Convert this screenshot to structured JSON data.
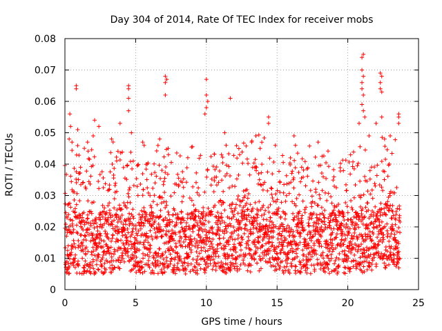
{
  "chart_data": {
    "type": "scatter",
    "title": "Day 304 of 2014, Rate Of TEC Index for receiver mobs",
    "xlabel": "GPS time / hours",
    "ylabel": "ROTI / TECUs",
    "xlim": [
      0,
      25
    ],
    "ylim": [
      0,
      0.08
    ],
    "xticks": [
      0,
      5,
      10,
      15,
      20,
      25
    ],
    "xtick_labels": [
      "0",
      "5",
      "10",
      "15",
      "20",
      "25"
    ],
    "yticks": [
      0,
      0.01,
      0.02,
      0.03,
      0.04,
      0.05,
      0.06,
      0.07,
      0.08
    ],
    "ytick_labels": [
      "0",
      "0.01",
      "0.02",
      "0.03",
      "0.04",
      "0.05",
      "0.06",
      "0.07",
      "0.08"
    ],
    "grid": true,
    "legend": "none",
    "marker": "+",
    "colors": {
      "series": "#ff0000",
      "axis": "#000000",
      "grid": "#a0a0a0",
      "background": "#ffffff"
    },
    "series": [
      {
        "name": "ROTI",
        "color": "#ff0000",
        "x_range": [
          0,
          23.7
        ],
        "dense_band": [
          0.005,
          0.025
        ],
        "points": [
          {
            "x": 0.2,
            "y": 0.027
          },
          {
            "x": 0.3,
            "y": 0.048
          },
          {
            "x": 0.35,
            "y": 0.056
          },
          {
            "x": 0.4,
            "y": 0.052
          },
          {
            "x": 0.5,
            "y": 0.047
          },
          {
            "x": 0.8,
            "y": 0.065
          },
          {
            "x": 0.8,
            "y": 0.064
          },
          {
            "x": 0.9,
            "y": 0.051
          },
          {
            "x": 1.6,
            "y": 0.047
          },
          {
            "x": 2.0,
            "y": 0.049
          },
          {
            "x": 2.1,
            "y": 0.054
          },
          {
            "x": 2.4,
            "y": 0.052
          },
          {
            "x": 3.3,
            "y": 0.048
          },
          {
            "x": 3.9,
            "y": 0.053
          },
          {
            "x": 4.5,
            "y": 0.065
          },
          {
            "x": 4.5,
            "y": 0.064
          },
          {
            "x": 4.5,
            "y": 0.061
          },
          {
            "x": 4.5,
            "y": 0.057
          },
          {
            "x": 4.7,
            "y": 0.05
          },
          {
            "x": 5.5,
            "y": 0.047
          },
          {
            "x": 5.6,
            "y": 0.046
          },
          {
            "x": 6.7,
            "y": 0.048
          },
          {
            "x": 7.1,
            "y": 0.068
          },
          {
            "x": 7.1,
            "y": 0.066
          },
          {
            "x": 7.2,
            "y": 0.067
          },
          {
            "x": 7.1,
            "y": 0.062
          },
          {
            "x": 7.3,
            "y": 0.045
          },
          {
            "x": 10.0,
            "y": 0.067
          },
          {
            "x": 10.0,
            "y": 0.062
          },
          {
            "x": 10.1,
            "y": 0.06
          },
          {
            "x": 10.0,
            "y": 0.058
          },
          {
            "x": 9.9,
            "y": 0.056
          },
          {
            "x": 11.3,
            "y": 0.05
          },
          {
            "x": 11.4,
            "y": 0.046
          },
          {
            "x": 11.7,
            "y": 0.061
          },
          {
            "x": 13.2,
            "y": 0.047
          },
          {
            "x": 13.5,
            "y": 0.049
          },
          {
            "x": 13.8,
            "y": 0.045
          },
          {
            "x": 14.4,
            "y": 0.055
          },
          {
            "x": 14.4,
            "y": 0.053
          },
          {
            "x": 16.2,
            "y": 0.049
          },
          {
            "x": 16.3,
            "y": 0.046
          },
          {
            "x": 17.9,
            "y": 0.047
          },
          {
            "x": 20.2,
            "y": 0.043
          },
          {
            "x": 20.8,
            "y": 0.053
          },
          {
            "x": 21.0,
            "y": 0.074
          },
          {
            "x": 21.1,
            "y": 0.075
          },
          {
            "x": 21.0,
            "y": 0.07
          },
          {
            "x": 21.1,
            "y": 0.068
          },
          {
            "x": 21.0,
            "y": 0.066
          },
          {
            "x": 21.0,
            "y": 0.064
          },
          {
            "x": 21.1,
            "y": 0.062
          },
          {
            "x": 21.0,
            "y": 0.059
          },
          {
            "x": 21.1,
            "y": 0.057
          },
          {
            "x": 21.2,
            "y": 0.055
          },
          {
            "x": 21.5,
            "y": 0.049
          },
          {
            "x": 22.0,
            "y": 0.053
          },
          {
            "x": 22.3,
            "y": 0.069
          },
          {
            "x": 22.4,
            "y": 0.068
          },
          {
            "x": 22.3,
            "y": 0.066
          },
          {
            "x": 22.3,
            "y": 0.064
          },
          {
            "x": 22.4,
            "y": 0.063
          },
          {
            "x": 22.4,
            "y": 0.055
          },
          {
            "x": 22.6,
            "y": 0.048
          },
          {
            "x": 23.0,
            "y": 0.049
          },
          {
            "x": 23.6,
            "y": 0.056
          },
          {
            "x": 23.6,
            "y": 0.055
          },
          {
            "x": 23.6,
            "y": 0.053
          }
        ]
      }
    ]
  }
}
